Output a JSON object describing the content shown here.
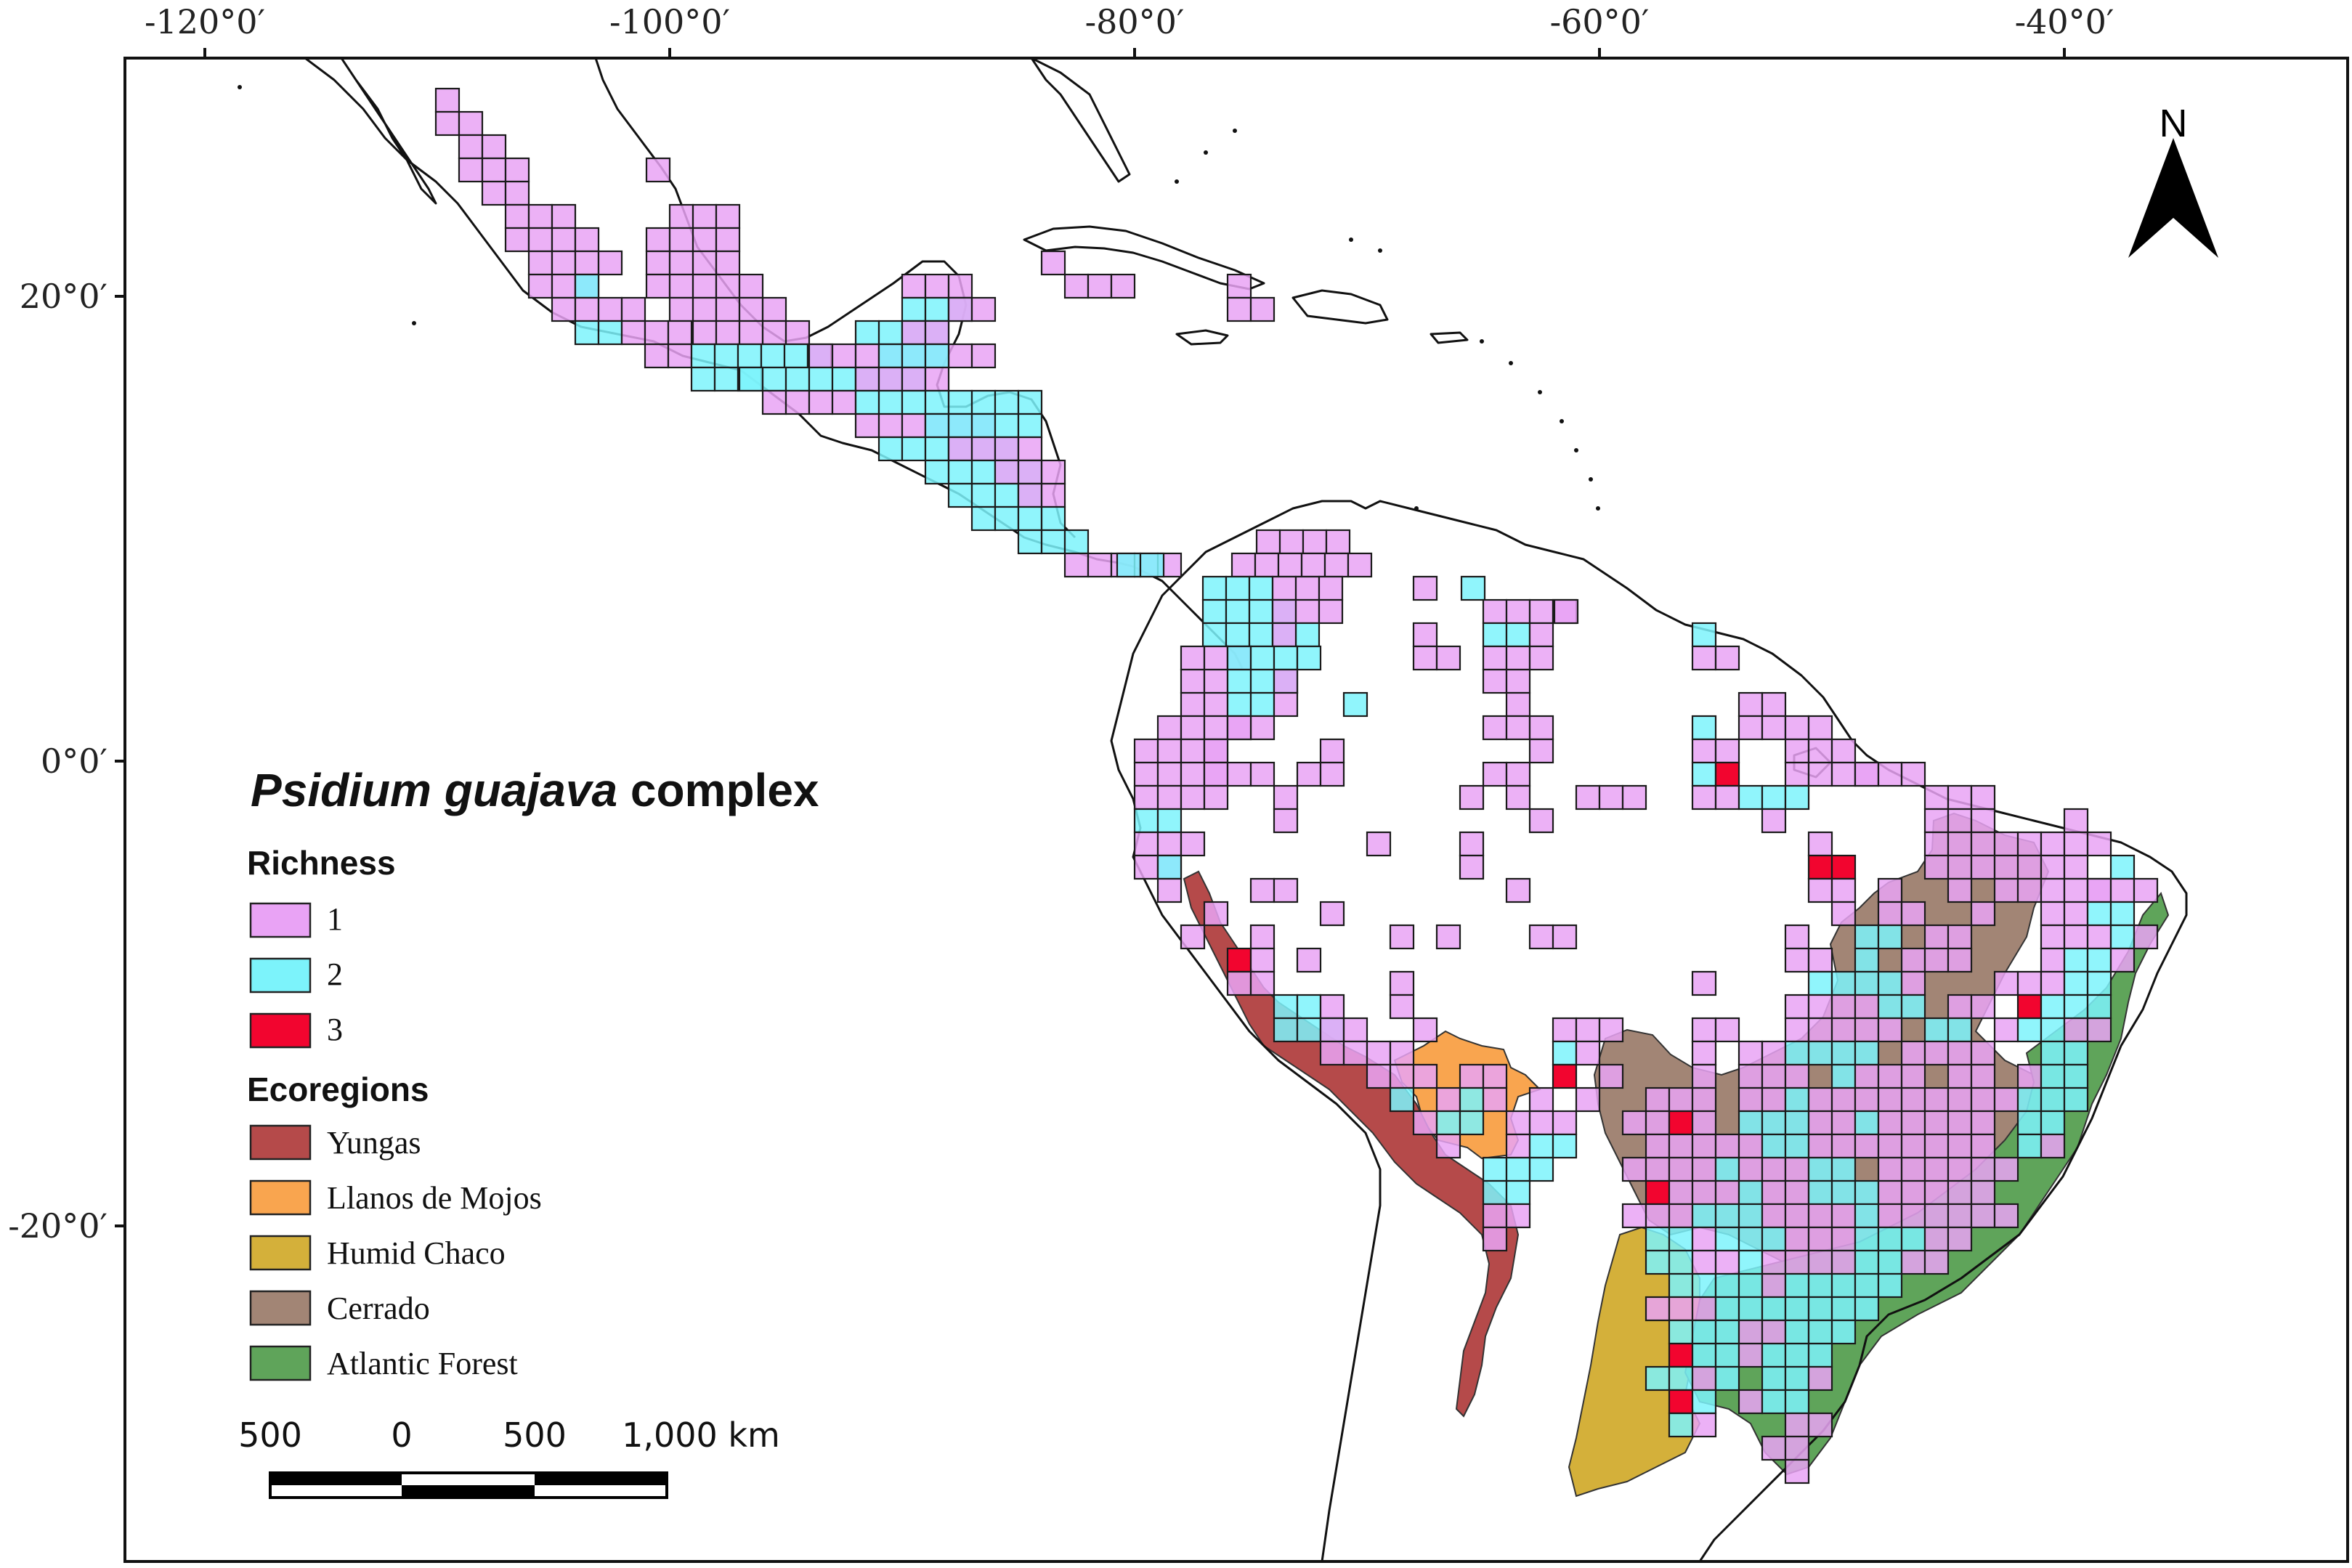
{
  "title": {
    "italic": "Psidium guajava",
    "normal": " complex"
  },
  "axes": {
    "lon_labels": [
      "-120°0′",
      "-100°0′",
      "-80°0′",
      "-60°0′",
      "-40°0′"
    ],
    "lat_labels": [
      "20°0′",
      "0°0′",
      "-20°0′"
    ]
  },
  "north_arrow": {
    "label": "N",
    "icon": "north-arrow-icon"
  },
  "legend": {
    "richness_title": "Richness",
    "richness": [
      {
        "label": "1",
        "color": "#e9a3f5"
      },
      {
        "label": "2",
        "color": "#7cf3fb"
      },
      {
        "label": "3",
        "color": "#f2052f"
      }
    ],
    "ecoregions_title": "Ecoregions",
    "ecoregions": [
      {
        "label": "Yungas",
        "color": "#b54a4a"
      },
      {
        "label": "Llanos de Mojos",
        "color": "#f9a54f"
      },
      {
        "label": "Humid Chaco",
        "color": "#d4b03a"
      },
      {
        "label": "Cerrado",
        "color": "#a28575"
      },
      {
        "label": "Atlantic Forest",
        "color": "#5fa45a"
      }
    ]
  },
  "scale_bar": {
    "labels": [
      "500",
      "0",
      "500",
      "1,000 km"
    ]
  }
}
